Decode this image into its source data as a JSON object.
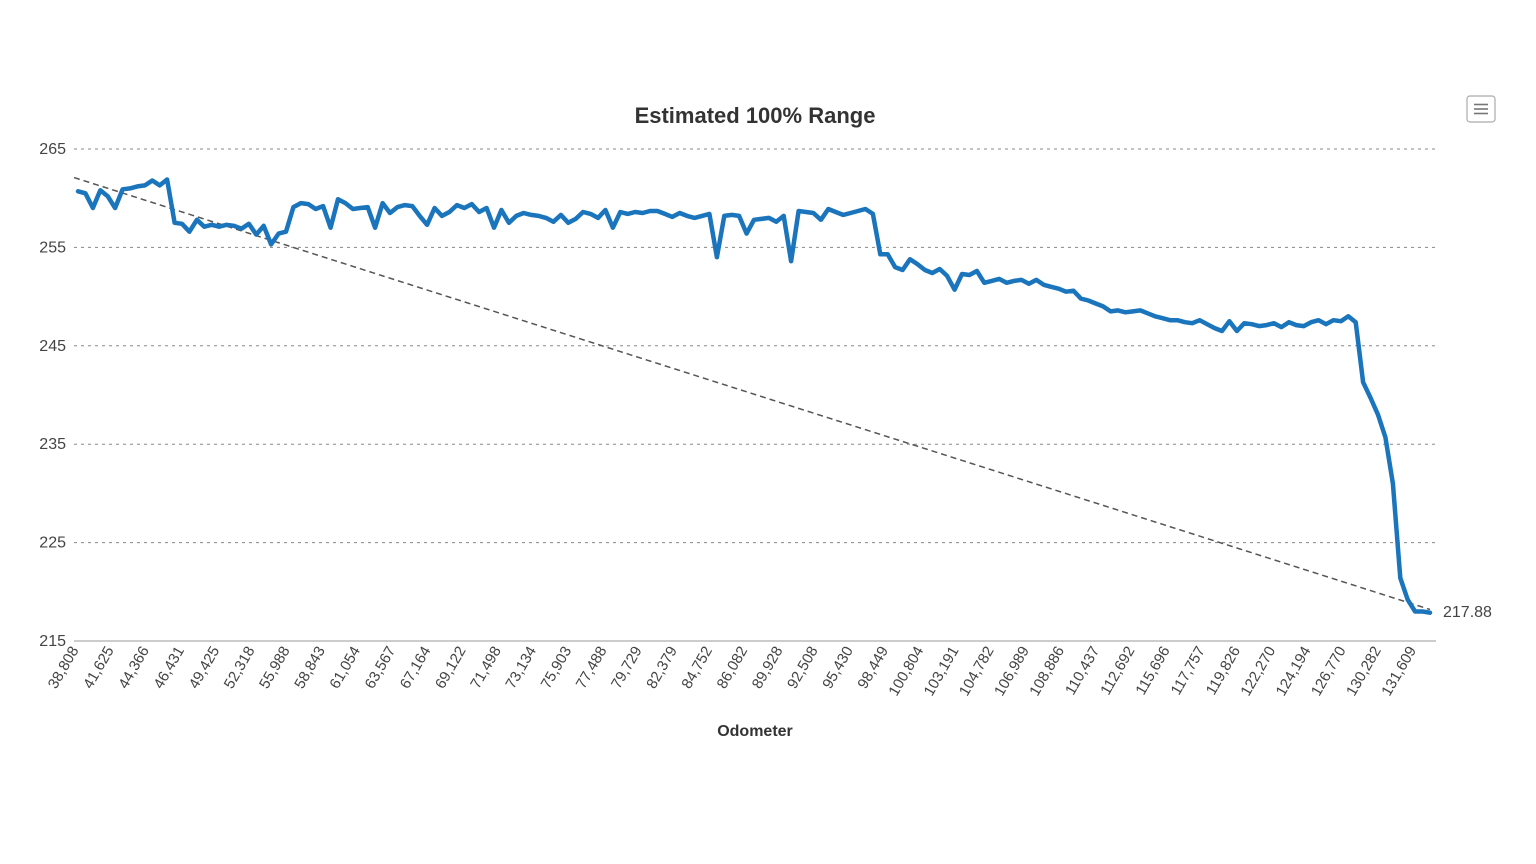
{
  "chart_data": {
    "type": "line",
    "title": "Estimated 100% Range",
    "xlabel": "Odometer",
    "ylabel": "",
    "ylim": [
      215,
      265
    ],
    "y_ticks": [
      "265",
      "255",
      "245",
      "235",
      "225",
      "215"
    ],
    "x_tick_labels": [
      "38,808",
      "41,625",
      "44,366",
      "46,431",
      "49,425",
      "52,318",
      "55,988",
      "58,843",
      "61,054",
      "63,567",
      "67,164",
      "69,122",
      "71,498",
      "73,134",
      "75,903",
      "77,488",
      "79,729",
      "82,379",
      "84,752",
      "86,082",
      "89,928",
      "92,508",
      "95,430",
      "98,449",
      "100,804",
      "103,191",
      "104,782",
      "106,989",
      "108,886",
      "110,437",
      "112,692",
      "115,696",
      "117,757",
      "119,826",
      "122,270",
      "124,194",
      "126,770",
      "130,282",
      "131,609"
    ],
    "grid": true,
    "legend": "none",
    "series": [
      {
        "values": [
          260.7,
          260.5,
          259,
          260.8,
          260.2,
          259,
          260.9,
          261,
          261.2,
          261.3,
          261.8,
          261.3,
          261.9,
          257.5,
          257.4,
          256.6,
          257.8,
          257.1,
          257.3,
          257.1,
          257.3,
          257.2,
          256.9,
          257.4,
          256.3,
          257.2,
          255.3,
          256.4,
          256.6,
          259.1,
          259.5,
          259.4,
          258.9,
          259.2,
          257.0,
          259.9,
          259.5,
          258.9,
          259.0,
          259.1,
          257.0,
          259.5,
          258.5,
          259.1,
          259.3,
          259.2,
          258.2,
          257.3,
          259.0,
          258.2,
          258.6,
          259.3,
          259.0,
          259.4,
          258.6,
          259.0,
          257.0,
          258.8,
          257.5,
          258.2,
          258.5,
          258.3,
          258.2,
          258.0,
          257.6,
          258.3,
          257.5,
          257.9,
          258.6,
          258.4,
          258.0,
          258.8,
          257.0,
          258.6,
          258.4,
          258.6,
          258.5,
          258.7,
          258.7,
          258.4,
          258.1,
          258.5,
          258.2,
          258.0,
          258.2,
          258.4,
          254.0,
          258.2,
          258.3,
          258.2,
          256.4,
          257.8,
          257.9,
          258.0,
          257.6,
          258.2,
          253.6,
          258.7,
          258.6,
          258.5,
          257.8,
          258.9,
          258.6,
          258.3,
          258.5,
          258.7,
          258.9,
          258.4,
          254.3,
          254.3,
          253.0,
          252.7,
          253.8,
          253.3,
          252.7,
          252.4,
          252.8,
          252.1,
          250.7,
          252.3,
          252.2,
          252.6,
          251.4,
          251.6,
          251.8,
          251.4,
          251.6,
          251.7,
          251.3,
          251.7,
          251.2,
          251.0,
          250.8,
          250.5,
          250.6,
          249.8,
          249.6,
          249.3,
          249.0,
          248.5,
          248.6,
          248.4,
          248.5,
          248.6,
          248.3,
          248.0,
          247.8,
          247.6,
          247.6,
          247.4,
          247.3,
          247.6,
          247.2,
          246.8,
          246.5,
          247.5,
          246.5,
          247.3,
          247.2,
          247.0,
          247.1,
          247.3,
          246.9,
          247.4,
          247.1,
          247.0,
          247.4,
          247.6,
          247.2,
          247.6,
          247.5,
          248.0,
          247.4,
          241.3,
          239.7,
          238.0,
          235.7,
          231.0,
          221.4,
          219.2,
          218.0,
          218.0,
          217.88
        ]
      }
    ],
    "end_label": "217.88",
    "trend": {
      "start_y": 262.1,
      "end_y": 218.2
    }
  },
  "ui": {
    "menu_icon": "hamburger-menu-icon"
  }
}
